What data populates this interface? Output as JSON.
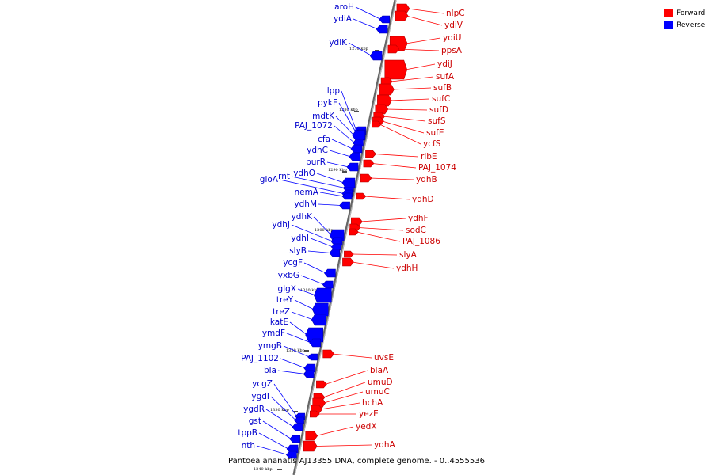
{
  "legend": {
    "forward": {
      "label": "Forward",
      "color": "#ff0000"
    },
    "reverse": {
      "label": "Reverse",
      "color": "#0000ff"
    }
  },
  "caption": "Pantoea ananatis AJ13355 DNA, complete genome. - 0..4555536",
  "ticks": [
    "1270 kbp",
    "1280 kbp",
    "1290 kbp",
    "1300 kbp",
    "1310 kbp",
    "1320 kbp",
    "1330 kbp",
    "1340 kbp"
  ],
  "forward_genes": [
    "nlpC",
    "ydiV",
    "ydiU",
    "ppsA",
    "ydiJ",
    "sufA",
    "sufB",
    "sufC",
    "sufD",
    "sufS",
    "sufE",
    "ycfS",
    "ribE",
    "PAJ_1074",
    "ydhB",
    "ydhD",
    "ydhF",
    "sodC",
    "PAJ_1086",
    "slyA",
    "ydhH",
    "uvsE",
    "blaA",
    "umuD",
    "umuC",
    "hchA",
    "yezE",
    "yedX",
    "ydhA"
  ],
  "reverse_genes": [
    "aroH",
    "ydiA",
    "ydiK",
    "lpp",
    "pykF",
    "mdtK",
    "PAJ_1072",
    "cfa",
    "ydhC",
    "purR",
    "rnt",
    "ydhO",
    "gloA",
    "nemA",
    "ydhM",
    "ydhK",
    "ydhJ",
    "ydhI",
    "slyB",
    "ycgF",
    "yxbG",
    "glgX",
    "treY",
    "treZ",
    "katE",
    "ymdF",
    "ymgB",
    "PAJ_1102",
    "bla",
    "ycgZ",
    "ygdI",
    "ygdR",
    "gst",
    "tppB",
    "nth"
  ]
}
